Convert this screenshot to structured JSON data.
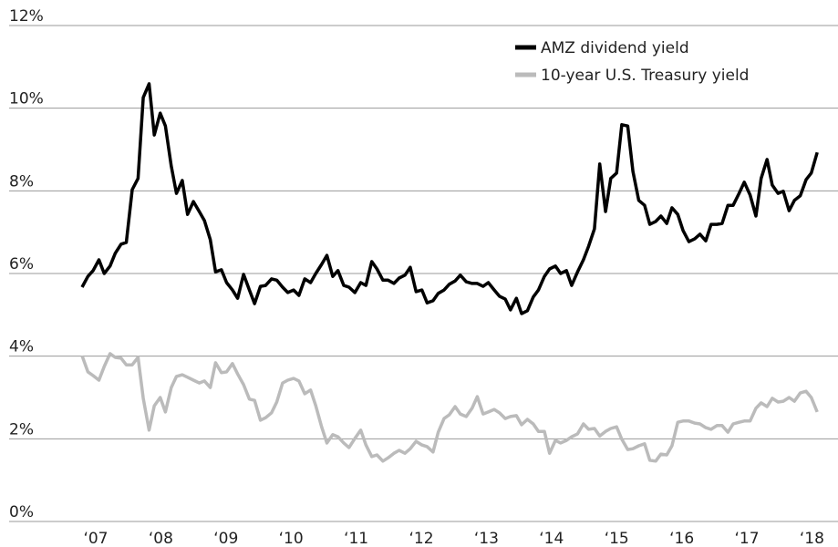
{
  "chart_data": {
    "type": "line",
    "x": [
      2006.79,
      2006.88,
      2006.96,
      2007.05,
      2007.13,
      2007.22,
      2007.3,
      2007.39,
      2007.47,
      2007.56,
      2007.65,
      2007.73,
      2007.82,
      2007.9,
      2007.99,
      2008.07,
      2008.16,
      2008.24,
      2008.33,
      2008.41,
      2008.5,
      2008.59,
      2008.67,
      2008.76,
      2008.84,
      2008.93,
      2009.01,
      2009.1,
      2009.18,
      2009.27,
      2009.36,
      2009.44,
      2009.53,
      2009.61,
      2009.7,
      2009.78,
      2009.87,
      2009.95,
      2010.04,
      2010.12,
      2010.21,
      2010.3,
      2010.38,
      2010.47,
      2010.55,
      2010.64,
      2010.72,
      2010.81,
      2010.89,
      2010.98,
      2011.07,
      2011.15,
      2011.24,
      2011.32,
      2011.41,
      2011.49,
      2011.58,
      2011.66,
      2011.75,
      2011.83,
      2011.92,
      2012.01,
      2012.09,
      2012.18,
      2012.26,
      2012.35,
      2012.43,
      2012.52,
      2012.6,
      2012.69,
      2012.78,
      2012.86,
      2012.95,
      2013.03,
      2013.12,
      2013.2,
      2013.29,
      2013.37,
      2013.46,
      2013.54,
      2013.63,
      2013.72,
      2013.8,
      2013.89,
      2013.97,
      2014.06,
      2014.14,
      2014.23,
      2014.31,
      2014.4,
      2014.49,
      2014.57,
      2014.66,
      2014.74,
      2014.83,
      2014.91,
      2015.0,
      2015.08,
      2015.17,
      2015.25,
      2015.34,
      2015.43,
      2015.51,
      2015.6,
      2015.68,
      2015.77,
      2015.85,
      2015.94,
      2016.02,
      2016.11,
      2016.2,
      2016.28,
      2016.37,
      2016.45,
      2016.54,
      2016.62,
      2016.71,
      2016.79,
      2016.88,
      2016.96,
      2017.05,
      2017.14,
      2017.22,
      2017.31,
      2017.39,
      2017.48,
      2017.56,
      2017.65,
      2017.73,
      2017.82,
      2017.91,
      2017.99,
      2018.08
    ],
    "series": [
      {
        "name": "AMZ dividend yield",
        "color": "#000000",
        "values": [
          5.67,
          5.93,
          6.07,
          6.33,
          6.0,
          6.18,
          6.49,
          6.71,
          6.75,
          8.03,
          8.3,
          10.26,
          10.59,
          9.35,
          9.88,
          9.57,
          8.6,
          7.94,
          8.25,
          7.43,
          7.74,
          7.5,
          7.28,
          6.82,
          6.04,
          6.09,
          5.78,
          5.6,
          5.4,
          5.98,
          5.6,
          5.27,
          5.69,
          5.71,
          5.87,
          5.84,
          5.67,
          5.54,
          5.6,
          5.47,
          5.87,
          5.78,
          6.0,
          6.22,
          6.44,
          5.93,
          6.07,
          5.71,
          5.67,
          5.54,
          5.78,
          5.71,
          6.29,
          6.11,
          5.84,
          5.84,
          5.76,
          5.89,
          5.96,
          6.15,
          5.56,
          5.6,
          5.29,
          5.34,
          5.52,
          5.6,
          5.74,
          5.82,
          5.96,
          5.8,
          5.76,
          5.76,
          5.69,
          5.78,
          5.6,
          5.45,
          5.38,
          5.12,
          5.4,
          5.03,
          5.1,
          5.43,
          5.6,
          5.93,
          6.11,
          6.18,
          6.0,
          6.07,
          5.71,
          6.04,
          6.33,
          6.66,
          7.08,
          8.65,
          7.5,
          8.3,
          8.43,
          9.6,
          9.57,
          8.47,
          7.77,
          7.65,
          7.19,
          7.26,
          7.39,
          7.21,
          7.59,
          7.43,
          7.04,
          6.77,
          6.84,
          6.95,
          6.79,
          7.19,
          7.19,
          7.21,
          7.65,
          7.65,
          7.94,
          8.21,
          7.9,
          7.39,
          8.3,
          8.76,
          8.14,
          7.94,
          7.99,
          7.52,
          7.77,
          7.88,
          8.27,
          8.43,
          8.93
        ]
      },
      {
        "name": "10-year U.S. Treasury yield",
        "color": "#bbbbbb",
        "values": [
          4.01,
          3.62,
          3.53,
          3.42,
          3.75,
          4.06,
          3.97,
          3.95,
          3.79,
          3.79,
          3.97,
          2.98,
          2.21,
          2.8,
          3.0,
          2.65,
          3.24,
          3.51,
          3.55,
          3.49,
          3.42,
          3.35,
          3.4,
          3.24,
          3.84,
          3.6,
          3.62,
          3.82,
          3.57,
          3.31,
          2.96,
          2.93,
          2.45,
          2.51,
          2.63,
          2.89,
          3.35,
          3.42,
          3.46,
          3.4,
          3.09,
          3.18,
          2.8,
          2.29,
          1.9,
          2.1,
          2.05,
          1.9,
          1.79,
          2.01,
          2.21,
          1.85,
          1.57,
          1.61,
          1.46,
          1.54,
          1.65,
          1.72,
          1.65,
          1.76,
          1.94,
          1.85,
          1.81,
          1.68,
          2.16,
          2.49,
          2.58,
          2.78,
          2.6,
          2.54,
          2.74,
          3.02,
          2.6,
          2.65,
          2.71,
          2.63,
          2.49,
          2.54,
          2.56,
          2.34,
          2.47,
          2.36,
          2.18,
          2.18,
          1.65,
          1.96,
          1.9,
          1.96,
          2.05,
          2.12,
          2.36,
          2.23,
          2.25,
          2.07,
          2.18,
          2.25,
          2.29,
          1.99,
          1.74,
          1.76,
          1.83,
          1.88,
          1.48,
          1.46,
          1.63,
          1.61,
          1.83,
          2.4,
          2.43,
          2.43,
          2.38,
          2.36,
          2.27,
          2.23,
          2.32,
          2.32,
          2.16,
          2.36,
          2.4,
          2.43,
          2.43,
          2.74,
          2.87,
          2.78,
          2.98,
          2.89,
          2.91,
          3.0,
          2.91,
          3.11,
          3.15,
          3.0,
          2.65
        ]
      }
    ],
    "xlim": [
      2005.67,
      2018.4
    ],
    "xticks": [
      {
        "value": 2007,
        "label": "‘07"
      },
      {
        "value": 2008,
        "label": "‘08"
      },
      {
        "value": 2009,
        "label": "‘09"
      },
      {
        "value": 2010,
        "label": "‘10"
      },
      {
        "value": 2011,
        "label": "‘11"
      },
      {
        "value": 2012,
        "label": "‘12"
      },
      {
        "value": 2013,
        "label": "‘13"
      },
      {
        "value": 2014,
        "label": "‘14"
      },
      {
        "value": 2015,
        "label": "‘15"
      },
      {
        "value": 2016,
        "label": "‘16"
      },
      {
        "value": 2017,
        "label": "‘17"
      },
      {
        "value": 2018,
        "label": "‘18"
      }
    ],
    "ylim": [
      0,
      12
    ],
    "yticks": [
      {
        "value": 0,
        "label": "0%"
      },
      {
        "value": 2,
        "label": "2%"
      },
      {
        "value": 4,
        "label": "4%"
      },
      {
        "value": 6,
        "label": "6%"
      },
      {
        "value": 8,
        "label": "8%"
      },
      {
        "value": 10,
        "label": "10%"
      },
      {
        "value": 12,
        "label": "12%"
      }
    ],
    "grid": true,
    "legend": "upper right"
  }
}
